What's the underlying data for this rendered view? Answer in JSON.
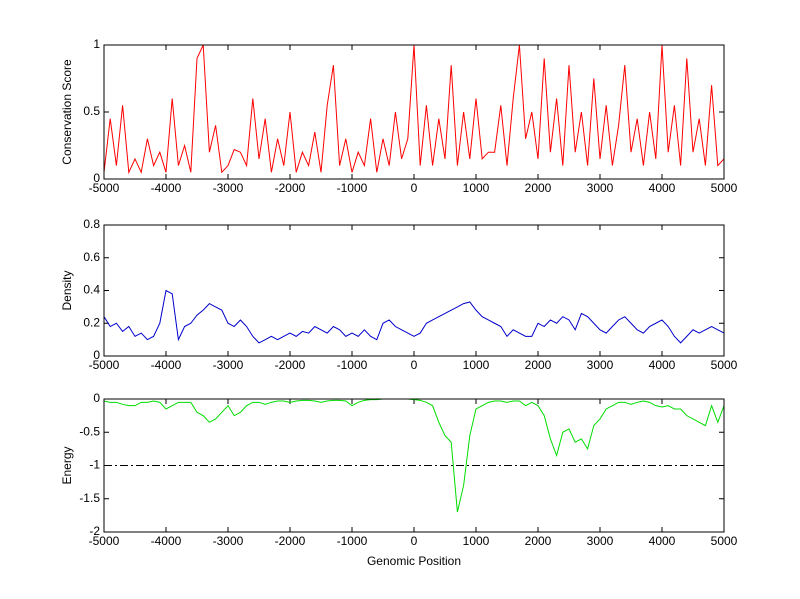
{
  "chart_data": [
    {
      "type": "line",
      "ylabel": "Conservation Score",
      "xlim": [
        -5000,
        5000
      ],
      "xticks": [
        -5000,
        -4000,
        -3000,
        -2000,
        -1000,
        0,
        1000,
        2000,
        3000,
        4000,
        5000
      ],
      "ylim": [
        0,
        1
      ],
      "yticks": [
        0,
        0.5,
        1
      ],
      "x": [
        -5000,
        -4900,
        -4800,
        -4700,
        -4600,
        -4500,
        -4400,
        -4300,
        -4200,
        -4100,
        -4000,
        -3900,
        -3800,
        -3700,
        -3600,
        -3500,
        -3400,
        -3300,
        -3200,
        -3100,
        -3000,
        -2900,
        -2800,
        -2700,
        -2600,
        -2500,
        -2400,
        -2300,
        -2200,
        -2100,
        -2000,
        -1900,
        -1800,
        -1700,
        -1600,
        -1500,
        -1400,
        -1300,
        -1200,
        -1100,
        -1000,
        -900,
        -800,
        -700,
        -600,
        -500,
        -400,
        -300,
        -200,
        -100,
        0,
        100,
        200,
        300,
        400,
        500,
        600,
        700,
        800,
        900,
        1000,
        1100,
        1200,
        1300,
        1400,
        1500,
        1600,
        1700,
        1800,
        1900,
        2000,
        2100,
        2200,
        2300,
        2400,
        2500,
        2600,
        2700,
        2800,
        2900,
        3000,
        3100,
        3200,
        3300,
        3400,
        3500,
        3600,
        3700,
        3800,
        3900,
        4000,
        4100,
        4200,
        4300,
        4400,
        4500,
        4600,
        4700,
        4800,
        4900,
        5000
      ],
      "series": [
        {
          "color": "#ff0000",
          "values": [
            0.05,
            0.45,
            0.1,
            0.55,
            0.05,
            0.15,
            0.05,
            0.3,
            0.1,
            0.2,
            0.05,
            0.6,
            0.1,
            0.25,
            0.05,
            0.9,
            1,
            0.2,
            0.4,
            0.05,
            0.1,
            0.22,
            0.2,
            0.1,
            0.6,
            0.15,
            0.45,
            0.05,
            0.3,
            0.1,
            0.5,
            0.05,
            0.2,
            0.1,
            0.35,
            0.05,
            0.55,
            0.85,
            0.1,
            0.3,
            0.05,
            0.2,
            0.1,
            0.45,
            0.05,
            0.3,
            0.1,
            0.5,
            0.15,
            0.3,
            1,
            0.1,
            0.55,
            0.1,
            0.45,
            0.15,
            0.85,
            0.1,
            0.5,
            0.15,
            0.6,
            0.15,
            0.2,
            0.2,
            0.55,
            0.1,
            0.6,
            1,
            0.3,
            0.5,
            0.15,
            0.9,
            0.2,
            0.6,
            0.1,
            0.85,
            0.2,
            0.5,
            0.1,
            0.75,
            0.15,
            0.55,
            0.1,
            0.4,
            0.85,
            0.2,
            0.45,
            0.1,
            0.5,
            0.15,
            1,
            0.2,
            0.55,
            0.1,
            0.9,
            0.2,
            0.45,
            0.1,
            0.7,
            0.1,
            0.15
          ]
        }
      ]
    },
    {
      "type": "line",
      "ylabel": "Density",
      "xlim": [
        -5000,
        5000
      ],
      "xticks": [
        -5000,
        -4000,
        -3000,
        -2000,
        -1000,
        0,
        1000,
        2000,
        3000,
        4000,
        5000
      ],
      "ylim": [
        0,
        0.8
      ],
      "yticks": [
        0,
        0.2,
        0.4,
        0.6,
        0.8
      ],
      "x": [
        -5000,
        -4900,
        -4800,
        -4700,
        -4600,
        -4500,
        -4400,
        -4300,
        -4200,
        -4100,
        -4000,
        -3900,
        -3800,
        -3700,
        -3600,
        -3500,
        -3400,
        -3300,
        -3200,
        -3100,
        -3000,
        -2900,
        -2800,
        -2700,
        -2600,
        -2500,
        -2400,
        -2300,
        -2200,
        -2100,
        -2000,
        -1900,
        -1800,
        -1700,
        -1600,
        -1500,
        -1400,
        -1300,
        -1200,
        -1100,
        -1000,
        -900,
        -800,
        -700,
        -600,
        -500,
        -400,
        -300,
        -200,
        -100,
        0,
        100,
        200,
        300,
        400,
        500,
        600,
        700,
        800,
        900,
        1000,
        1100,
        1200,
        1300,
        1400,
        1500,
        1600,
        1700,
        1800,
        1900,
        2000,
        2100,
        2200,
        2300,
        2400,
        2500,
        2600,
        2700,
        2800,
        2900,
        3000,
        3100,
        3200,
        3300,
        3400,
        3500,
        3600,
        3700,
        3800,
        3900,
        4000,
        4100,
        4200,
        4300,
        4400,
        4500,
        4600,
        4700,
        4800,
        4900,
        5000
      ],
      "series": [
        {
          "color": "#0000cc",
          "values": [
            0.24,
            0.18,
            0.2,
            0.15,
            0.18,
            0.12,
            0.14,
            0.1,
            0.12,
            0.2,
            0.4,
            0.38,
            0.1,
            0.18,
            0.2,
            0.25,
            0.28,
            0.32,
            0.3,
            0.28,
            0.2,
            0.18,
            0.22,
            0.18,
            0.12,
            0.08,
            0.1,
            0.12,
            0.1,
            0.12,
            0.14,
            0.12,
            0.15,
            0.14,
            0.18,
            0.16,
            0.14,
            0.18,
            0.16,
            0.12,
            0.14,
            0.12,
            0.16,
            0.12,
            0.1,
            0.2,
            0.22,
            0.18,
            0.16,
            0.14,
            0.12,
            0.14,
            0.2,
            0.22,
            0.24,
            0.26,
            0.28,
            0.3,
            0.32,
            0.33,
            0.28,
            0.24,
            0.22,
            0.2,
            0.18,
            0.12,
            0.16,
            0.14,
            0.12,
            0.12,
            0.2,
            0.18,
            0.22,
            0.2,
            0.24,
            0.22,
            0.16,
            0.26,
            0.24,
            0.2,
            0.16,
            0.14,
            0.18,
            0.22,
            0.24,
            0.2,
            0.16,
            0.14,
            0.18,
            0.2,
            0.22,
            0.18,
            0.12,
            0.08,
            0.12,
            0.16,
            0.14,
            0.16,
            0.18,
            0.16,
            0.14
          ]
        }
      ]
    },
    {
      "type": "line",
      "ylabel": "Energy",
      "xlabel": "Genomic Position",
      "xlim": [
        -5000,
        5000
      ],
      "xticks": [
        -5000,
        -4000,
        -3000,
        -2000,
        -1000,
        0,
        1000,
        2000,
        3000,
        4000,
        5000
      ],
      "ylim": [
        -2,
        0
      ],
      "yticks": [
        -2,
        -1.5,
        -1,
        -0.5,
        0
      ],
      "hline": -1,
      "x": [
        -5000,
        -4900,
        -4800,
        -4700,
        -4600,
        -4500,
        -4400,
        -4300,
        -4200,
        -4100,
        -4000,
        -3900,
        -3800,
        -3700,
        -3600,
        -3500,
        -3400,
        -3300,
        -3200,
        -3100,
        -3000,
        -2900,
        -2800,
        -2700,
        -2600,
        -2500,
        -2400,
        -2300,
        -2200,
        -2100,
        -2000,
        -1900,
        -1800,
        -1700,
        -1600,
        -1500,
        -1400,
        -1300,
        -1200,
        -1100,
        -1000,
        -900,
        -800,
        -700,
        -600,
        -500,
        -400,
        -300,
        -200,
        -100,
        0,
        100,
        200,
        300,
        400,
        500,
        600,
        700,
        800,
        900,
        1000,
        1100,
        1200,
        1300,
        1400,
        1500,
        1600,
        1700,
        1800,
        1900,
        2000,
        2100,
        2200,
        2300,
        2400,
        2500,
        2600,
        2700,
        2800,
        2900,
        3000,
        3100,
        3200,
        3300,
        3400,
        3500,
        3600,
        3700,
        3800,
        3900,
        4000,
        4100,
        4200,
        4300,
        4400,
        4500,
        4600,
        4700,
        4800,
        4900,
        5000
      ],
      "series": [
        {
          "color": "#00dd00",
          "values": [
            -0.03,
            -0.05,
            -0.05,
            -0.08,
            -0.1,
            -0.1,
            -0.05,
            -0.05,
            -0.03,
            -0.05,
            -0.15,
            -0.1,
            -0.05,
            -0.05,
            -0.05,
            -0.2,
            -0.25,
            -0.35,
            -0.3,
            -0.2,
            -0.1,
            -0.25,
            -0.2,
            -0.1,
            -0.05,
            -0.05,
            -0.08,
            -0.05,
            -0.03,
            -0.03,
            -0.05,
            -0.03,
            -0.02,
            -0.02,
            -0.03,
            -0.05,
            -0.03,
            -0.02,
            -0.02,
            -0.03,
            -0.1,
            -0.05,
            -0.02,
            -0.01,
            -0.01,
            0,
            0,
            0,
            0,
            0,
            -0.01,
            -0.02,
            -0.05,
            -0.1,
            -0.35,
            -0.55,
            -0.65,
            -1.7,
            -1.3,
            -0.55,
            -0.15,
            -0.1,
            -0.05,
            -0.03,
            -0.03,
            -0.05,
            -0.03,
            -0.03,
            -0.1,
            -0.05,
            -0.1,
            -0.25,
            -0.6,
            -0.85,
            -0.5,
            -0.45,
            -0.65,
            -0.6,
            -0.75,
            -0.4,
            -0.3,
            -0.15,
            -0.1,
            -0.05,
            -0.05,
            -0.08,
            -0.05,
            -0.03,
            -0.05,
            -0.1,
            -0.12,
            -0.1,
            -0.15,
            -0.15,
            -0.25,
            -0.3,
            -0.35,
            -0.4,
            -0.1,
            -0.35,
            -0.1
          ]
        }
      ]
    }
  ]
}
